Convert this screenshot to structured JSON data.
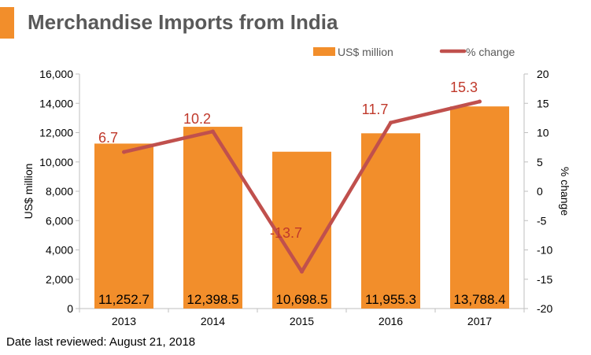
{
  "title": "Merchandise Imports from India",
  "footer": "Date last reviewed: August 21, 2018",
  "colors": {
    "bar": "#f28e2b",
    "line": "#c0504d",
    "line_label": "#c0392b",
    "title_accent": "#f28e2b",
    "title_text": "#595959"
  },
  "chart_data": {
    "type": "bar+line",
    "categories": [
      "2013",
      "2014",
      "2015",
      "2016",
      "2017"
    ],
    "series": [
      {
        "name": "US$ million",
        "type": "bar",
        "axis": "left",
        "values": [
          11252.7,
          12398.5,
          10698.5,
          11955.3,
          13788.4
        ],
        "labels": [
          "11,252.7",
          "12,398.5",
          "10,698.5",
          "11,955.3",
          "13,788.4"
        ]
      },
      {
        "name": "% change",
        "type": "line",
        "axis": "right",
        "values": [
          6.7,
          10.2,
          -13.7,
          11.7,
          15.3
        ],
        "labels": [
          "6.7",
          "10.2",
          "-13.7",
          "11.7",
          "15.3"
        ]
      }
    ],
    "y_left": {
      "label": "US$ million",
      "ylim": [
        0,
        16000
      ],
      "ticks": [
        "0",
        "2,000",
        "4,000",
        "6,000",
        "8,000",
        "10,000",
        "12,000",
        "14,000",
        "16,000"
      ],
      "tick_values": [
        0,
        2000,
        4000,
        6000,
        8000,
        10000,
        12000,
        14000,
        16000
      ]
    },
    "y_right": {
      "label": "% change",
      "ylim": [
        -20,
        20
      ],
      "ticks": [
        "-20",
        "-15",
        "-10",
        "-5",
        "0",
        "5",
        "10",
        "15",
        "20"
      ],
      "tick_values": [
        -20,
        -15,
        -10,
        -5,
        0,
        5,
        10,
        15,
        20
      ]
    },
    "legend": {
      "position": "top-right",
      "entries": [
        "US$ million",
        "% change"
      ]
    },
    "grid": false
  }
}
